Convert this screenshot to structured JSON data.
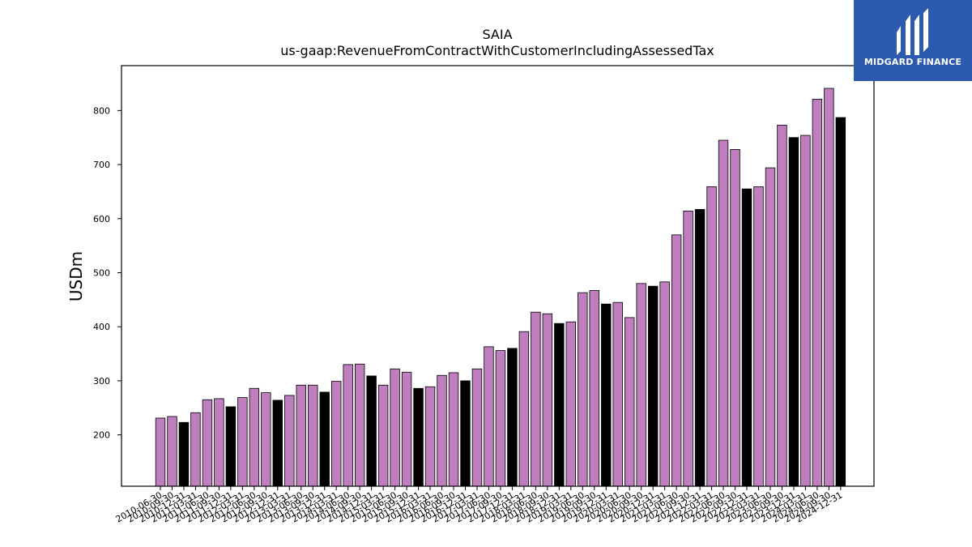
{
  "logo": {
    "name": "MIDGARD FINANCE"
  },
  "chart_data": {
    "type": "bar",
    "title": "SAIA",
    "subtitle": "us-gaap:RevenueFromContractWithCustomerIncludingAssessedTax",
    "xlabel": "",
    "ylabel": "USDm",
    "ylim": [
      105,
      883
    ],
    "yticks": [
      200,
      300,
      400,
      500,
      600,
      700,
      800
    ],
    "grid": false,
    "colors": {
      "quarter": "#bf7fbf",
      "annual": "#000000",
      "edge": "#000000"
    },
    "categories": [
      "2010-06-30",
      "2010-09-30",
      "2010-12-31",
      "2011-03-31",
      "2011-06-30",
      "2011-09-30",
      "2011-12-31",
      "2012-03-31",
      "2012-06-30",
      "2012-09-30",
      "2012-12-31",
      "2013-03-31",
      "2013-06-30",
      "2013-09-30",
      "2013-12-31",
      "2014-03-31",
      "2014-06-30",
      "2014-09-30",
      "2014-12-31",
      "2015-03-31",
      "2015-06-30",
      "2015-09-30",
      "2015-12-31",
      "2016-03-31",
      "2016-06-30",
      "2016-09-30",
      "2016-12-31",
      "2017-03-31",
      "2017-06-30",
      "2017-09-30",
      "2017-12-31",
      "2018-03-31",
      "2018-06-30",
      "2018-09-30",
      "2018-12-31",
      "2019-03-31",
      "2019-06-30",
      "2019-09-30",
      "2019-12-31",
      "2020-03-31",
      "2020-06-30",
      "2020-09-30",
      "2020-12-31",
      "2021-03-31",
      "2021-06-30",
      "2021-09-30",
      "2021-12-31",
      "2022-03-31",
      "2022-06-30",
      "2022-09-30",
      "2022-12-31",
      "2023-03-31",
      "2023-06-30",
      "2023-09-30",
      "2023-12-31",
      "2024-03-31",
      "2024-06-30",
      "2024-09-30",
      "2024-12-31"
    ],
    "values": [
      231,
      234,
      223,
      241,
      265,
      267,
      252,
      269,
      286,
      278,
      264,
      273,
      292,
      292,
      279,
      299,
      330,
      331,
      309,
      292,
      322,
      316,
      286,
      289,
      310,
      315,
      300,
      322,
      363,
      356,
      360,
      391,
      427,
      424,
      406,
      409,
      463,
      467,
      442,
      445,
      417,
      480,
      475,
      483,
      570,
      614,
      617,
      659,
      745,
      728,
      655,
      659,
      694,
      773,
      750,
      754,
      821,
      841,
      787
    ],
    "annual": [
      false,
      false,
      true,
      false,
      false,
      false,
      true,
      false,
      false,
      false,
      true,
      false,
      false,
      false,
      true,
      false,
      false,
      false,
      true,
      false,
      false,
      false,
      true,
      false,
      false,
      false,
      true,
      false,
      false,
      false,
      true,
      false,
      false,
      false,
      true,
      false,
      false,
      false,
      true,
      false,
      false,
      false,
      true,
      false,
      false,
      false,
      true,
      false,
      false,
      false,
      true,
      false,
      false,
      false,
      true,
      false,
      false,
      false,
      true
    ]
  }
}
